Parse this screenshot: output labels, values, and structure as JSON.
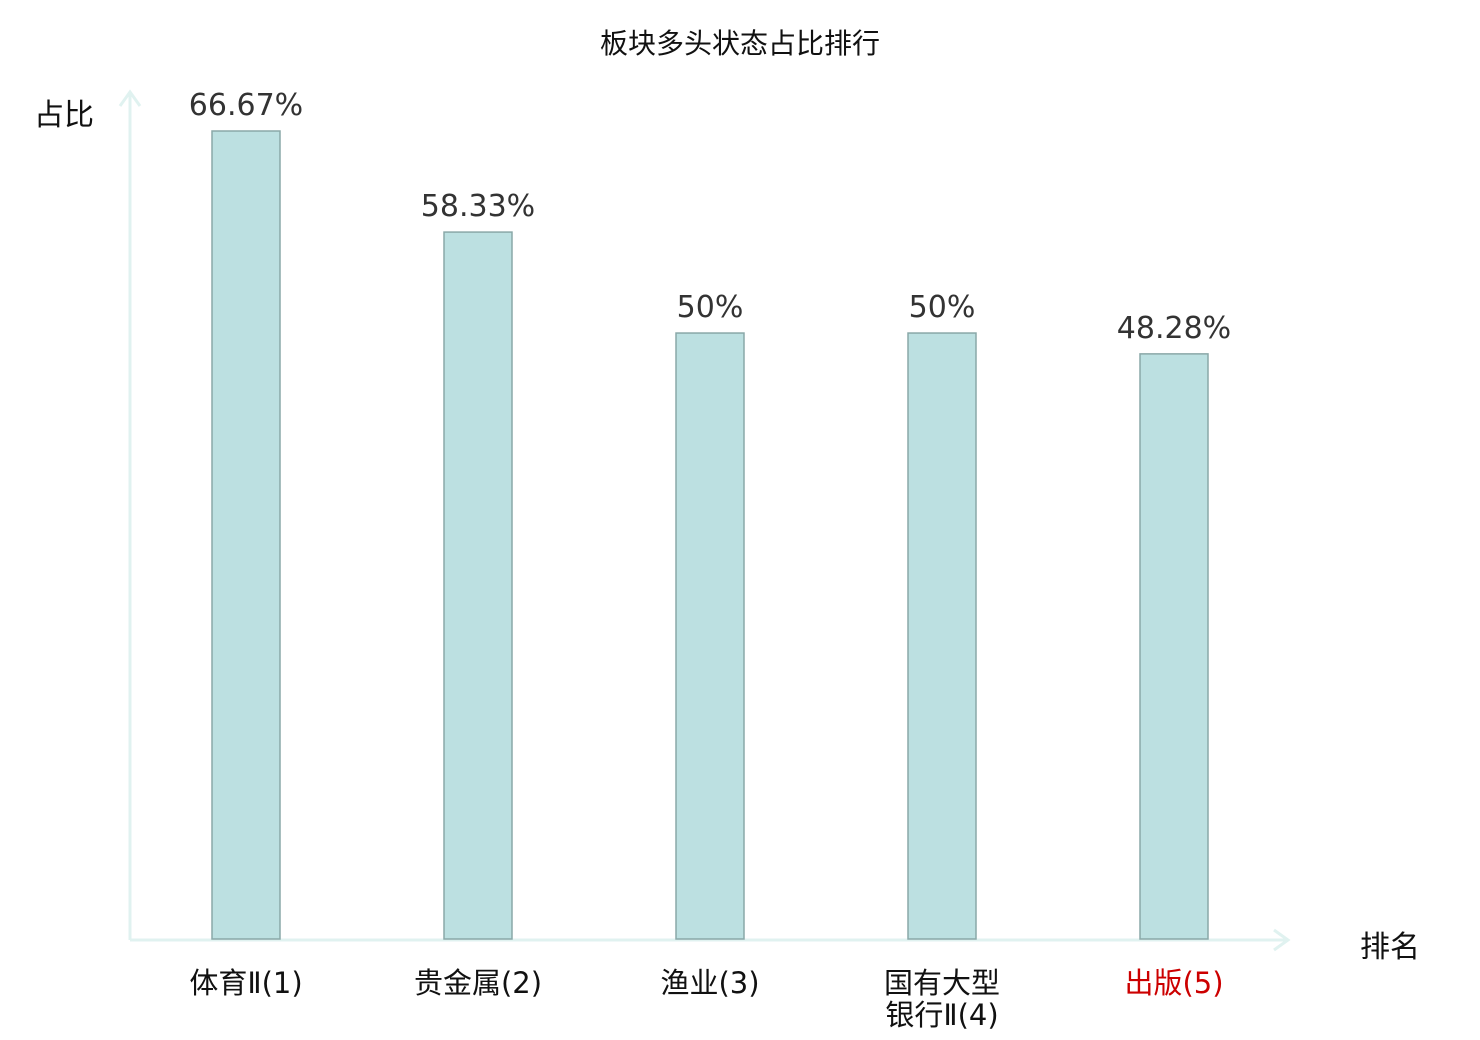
{
  "chart_data": {
    "type": "bar",
    "title": "板块多头状态占比排行",
    "ylabel": "占比",
    "xlabel": "排名",
    "categories": [
      [
        "体育Ⅱ(1)"
      ],
      [
        "贵金属(2)"
      ],
      [
        "渔业(3)"
      ],
      [
        "国有大型",
        "银行Ⅱ(4)"
      ],
      [
        "出版(5)"
      ]
    ],
    "values": [
      66.67,
      58.33,
      50,
      50,
      48.28
    ],
    "value_labels": [
      "66.67%",
      "58.33%",
      "50%",
      "50%",
      "48.28%"
    ],
    "highlight_index": 4,
    "ylim": [
      0,
      100
    ],
    "grid": false,
    "colors": {
      "bar_fill": "#bce0e1",
      "bar_stroke": "#8aa8a8",
      "axis": "#e0f2f0",
      "tick_text": "#111111",
      "highlight_text": "#cc0000"
    }
  }
}
